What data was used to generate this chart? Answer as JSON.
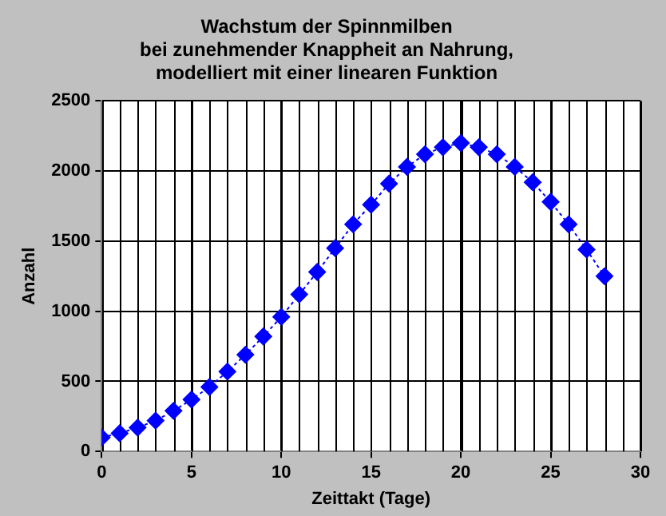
{
  "chart_data": {
    "type": "line",
    "title": "Wachstum der Spinnmilben\nbei zunehmender Knappheit an Nahrung,\nmodelliert mit einer linearen Funktion",
    "xlabel": "Zeittakt (Tage)",
    "ylabel": "Anzahl",
    "x": [
      0,
      1,
      2,
      3,
      4,
      5,
      6,
      7,
      8,
      9,
      10,
      11,
      12,
      13,
      14,
      15,
      16,
      17,
      18,
      19,
      20,
      21,
      22,
      23,
      24,
      25,
      26,
      27,
      28
    ],
    "series": [
      {
        "color": "#0000ff",
        "values": [
          100,
          130,
          170,
          220,
          290,
          370,
          460,
          570,
          690,
          820,
          960,
          1120,
          1280,
          1450,
          1620,
          1760,
          1910,
          2030,
          2120,
          2170,
          2200,
          2170,
          2120,
          2030,
          1920,
          1780,
          1620,
          1440,
          1250
        ]
      }
    ],
    "xlim": [
      0,
      30
    ],
    "xticks": [
      0,
      5,
      10,
      15,
      20,
      25,
      30
    ],
    "ylim": [
      0,
      2500
    ],
    "yticks": [
      0,
      500,
      1000,
      1500,
      2000,
      2500
    ],
    "grid": true,
    "legend": false,
    "marker": "diamond",
    "line_style": "dotted"
  }
}
